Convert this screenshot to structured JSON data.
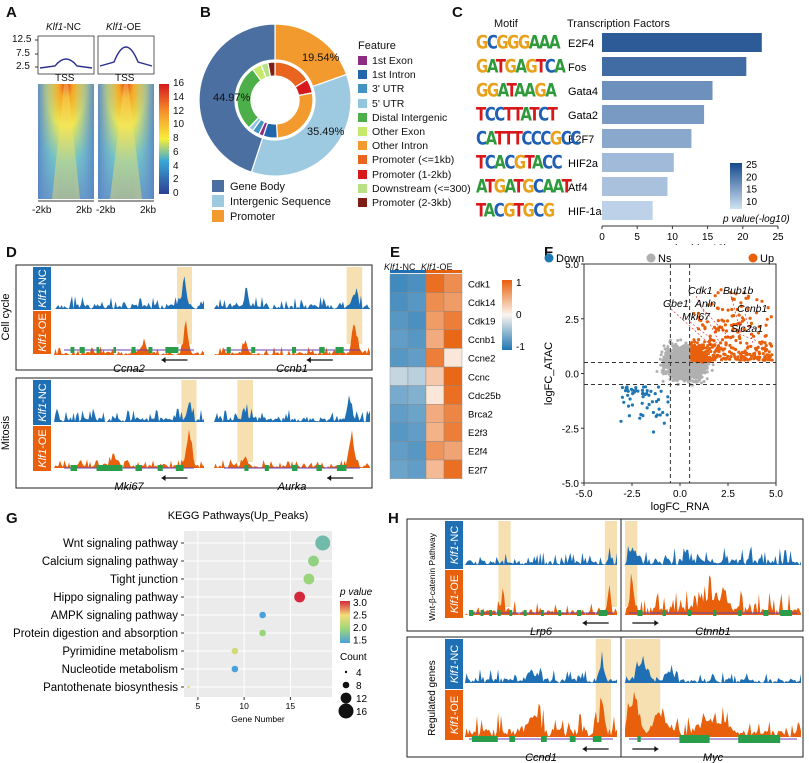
{
  "panel_labels": {
    "a": "A",
    "b": "B",
    "c": "C",
    "d": "D",
    "e": "E",
    "f": "F",
    "g": "G",
    "h": "H"
  },
  "panelA": {
    "col_labels": [
      {
        "gene": "Klf1",
        "suffix": "-NC"
      },
      {
        "gene": "Klf1",
        "suffix": "-OE"
      }
    ],
    "profile_yticks": [
      "12.5",
      "7.5",
      "2.5"
    ],
    "tss": "TSS",
    "x_left": "-2kb",
    "x_right": "2kb",
    "colorbar_ticks": [
      "16",
      "14",
      "12",
      "10",
      "8",
      "6",
      "4",
      "2",
      "0"
    ]
  },
  "panelB": {
    "legend_title": "Feature",
    "inner_legend": [
      {
        "label": "1st Exon",
        "color": "#8e2c83"
      },
      {
        "label": "1st Intron",
        "color": "#2166ac"
      },
      {
        "label": "3' UTR",
        "color": "#4393c3"
      },
      {
        "label": "5' UTR",
        "color": "#92c5de"
      },
      {
        "label": "Distal Intergenic",
        "color": "#4daf4a"
      },
      {
        "label": "Other Exon",
        "color": "#c7e96b"
      },
      {
        "label": "Other Intron",
        "color": "#f39a2e"
      },
      {
        "label": "Promoter (<=1kb)",
        "color": "#e8641f"
      },
      {
        "label": "Promoter (1-2kb)",
        "color": "#d7191c"
      },
      {
        "label": "Downstream (<=300)",
        "color": "#b8e186"
      },
      {
        "label": "Promoter (2-3kb)",
        "color": "#7f1d14"
      }
    ],
    "outer_legend": [
      {
        "label": "Gene Body",
        "color": "#4a6fa0"
      },
      {
        "label": "Intergenic Sequence",
        "color": "#9ecae1"
      },
      {
        "label": "Promoter",
        "color": "#f39a2e"
      }
    ],
    "outer_percent_labels": [
      "44.97%",
      "35.49%",
      "19.54%"
    ]
  },
  "panelC": {
    "col_motif": "Motif",
    "col_tf": "Transcription Factors",
    "chart_data": {
      "type": "bar",
      "orientation": "horizontal",
      "categories": [
        "E2F4",
        "Fos",
        "Gata4",
        "Gata2",
        "E2F7",
        "HIF2a",
        "Atf4",
        "HIF-1a"
      ],
      "values": [
        22.7,
        20.5,
        15.7,
        14.5,
        12.7,
        10.2,
        9.3,
        7.2
      ],
      "xlabel": "p value(-log10)",
      "xticks": [
        "0",
        "5",
        "10",
        "15",
        "20",
        "25"
      ],
      "xlim": [
        0,
        25
      ],
      "colorbar_title": "p value(-log10)",
      "colorbar_ticks": [
        "25",
        "20",
        "15",
        "10"
      ]
    },
    "motifs": [
      "GCGGGAAA",
      "GATGAGTCA",
      "GGATAAGA",
      "TCCTTATCT",
      "CATTTCCCGCC",
      "TCACGTACC",
      "ATGATGCAAT",
      "TACGTGCG"
    ]
  },
  "panelD": {
    "sample_nc": {
      "gene": "Klf1",
      "suffix": "-NC"
    },
    "sample_oe": {
      "gene": "Klf1",
      "suffix": "-OE"
    },
    "group_cell_cycle": "Cell cycle",
    "group_mitosis": "Mitosis",
    "genes": [
      "Ccna2",
      "Ccnb1",
      "Mki67",
      "Aurka"
    ]
  },
  "panelE": {
    "col_nc": {
      "gene": "Klf1",
      "suffix": "-NC"
    },
    "col_oe": {
      "gene": "Klf1",
      "suffix": "-OE"
    },
    "genes": [
      "Cdk1",
      "Cdk14",
      "Cdk19",
      "Ccnb1",
      "Ccne2",
      "Ccnc",
      "Cdc25b",
      "Brca2",
      "E2f3",
      "E2f4",
      "E2f7"
    ],
    "colorbar_ticks": [
      "1",
      "0",
      "-1"
    ]
  },
  "panelF": {
    "legend": [
      {
        "label": "Down",
        "color": "#1f77b4"
      },
      {
        "label": "Ns",
        "color": "#b0b0b0"
      },
      {
        "label": "Up",
        "color": "#e8600c"
      }
    ],
    "chart_data": {
      "type": "scatter",
      "xlabel": "logFC_RNA",
      "ylabel": "logFC_ATAC",
      "xlim": [
        -5.0,
        5.0
      ],
      "ylim": [
        -5.0,
        5.0
      ],
      "xticks": [
        "-5.0",
        "-2.5",
        "0.0",
        "2.5",
        "5.0"
      ],
      "yticks": [
        "5.0",
        "2.5",
        "0.0",
        "-2.5",
        "-5.0"
      ],
      "vlines": [
        -0.5,
        0.5
      ],
      "hlines": [
        -0.5,
        0.5
      ],
      "annotated_genes": [
        "Cdk1",
        "Bub1b",
        "Gbe1",
        "Anln",
        "Ccnb1",
        "Mki67",
        "Slc2a1"
      ]
    }
  },
  "panelG": {
    "chart_data": {
      "type": "scatter",
      "title": "KEGG Pathways(Up_Peaks)",
      "xlabel": "Gene Number",
      "xticks": [
        "5",
        "10",
        "15"
      ],
      "xlim": [
        3.5,
        19.5
      ],
      "categories": [
        "Wnt signaling pathway",
        "Calcium signaling pathway",
        "Tight junction",
        "Hippo signaling pathway",
        "AMPK signaling pathway",
        "Protein digestion and absorption",
        "Pyrimidine metabolism",
        "Nucleotide metabolism",
        "Pantothenate biosynthesis"
      ],
      "gene_number": [
        18.5,
        17.5,
        17,
        16,
        12,
        12,
        9,
        9,
        4
      ],
      "p_value": [
        1.75,
        1.95,
        2.0,
        3.0,
        1.45,
        2.0,
        2.3,
        1.5,
        2.4
      ],
      "count": [
        16,
        12,
        12,
        12,
        8,
        8,
        8,
        8,
        4
      ]
    },
    "color_legend_title": "p value",
    "color_legend_ticks": [
      "3.0",
      "2.5",
      "2.0",
      "1.5"
    ],
    "size_legend_title": "Count",
    "size_legend_labels": [
      "4",
      "8",
      "12",
      "16"
    ]
  },
  "panelH": {
    "sample_nc": {
      "gene": "Klf1",
      "suffix": "-NC"
    },
    "sample_oe": {
      "gene": "Klf1",
      "suffix": "-OE"
    },
    "group_wnt": "Wnt-β-catenin Pathway",
    "group_regulated": "Regulated genes",
    "genes": [
      "Lrp6",
      "Ctnnb1",
      "Ccnd1",
      "Myc"
    ]
  },
  "colors": {
    "nc_blue": "#1f6fb5",
    "oe_orange": "#e8600c",
    "highlight": "#f6dfb0",
    "gene_green": "#2a9d4a"
  }
}
